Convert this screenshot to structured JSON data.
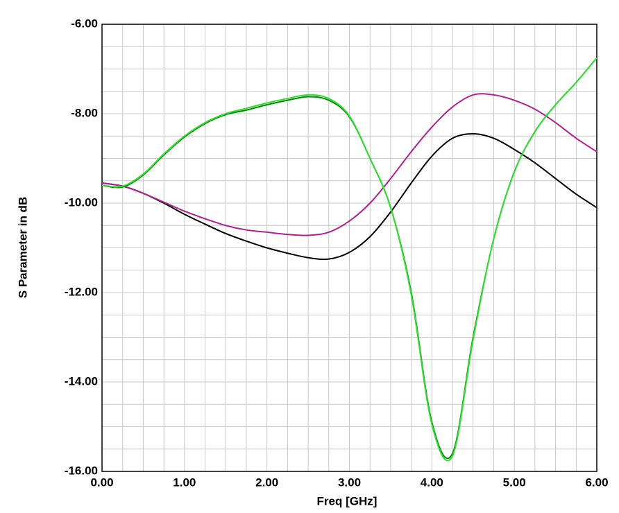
{
  "chart_data": {
    "type": "line",
    "x_label": "Freq [GHz]",
    "y_label": "S Parameter in dB",
    "x": [
      0,
      0.25,
      0.5,
      0.75,
      1,
      1.25,
      1.5,
      1.75,
      2,
      2.25,
      2.5,
      2.75,
      3,
      3.25,
      3.5,
      3.75,
      4,
      4.25,
      4.5,
      4.75,
      5,
      5.25,
      5.5,
      5.75,
      6
    ],
    "series": [
      {
        "color": "#000000",
        "values": [
          -9.55,
          -9.62,
          -9.78,
          -10.0,
          -10.25,
          -10.47,
          -10.68,
          -10.85,
          -11.0,
          -11.12,
          -11.22,
          -11.25,
          -11.1,
          -10.75,
          -10.2,
          -9.55,
          -8.95,
          -8.55,
          -8.45,
          -8.55,
          -8.8,
          -9.1,
          -9.45,
          -9.8,
          -10.1
        ]
      },
      {
        "color": "#b0208f",
        "values": [
          -9.55,
          -9.62,
          -9.78,
          -9.98,
          -10.18,
          -10.35,
          -10.5,
          -10.6,
          -10.65,
          -10.7,
          -10.72,
          -10.65,
          -10.4,
          -10.0,
          -9.45,
          -8.85,
          -8.3,
          -7.85,
          -7.58,
          -7.58,
          -7.7,
          -7.9,
          -8.2,
          -8.55,
          -8.85
        ]
      },
      {
        "color": "#008a00",
        "values": [
          -9.6,
          -9.64,
          -9.37,
          -8.92,
          -8.52,
          -8.22,
          -8.02,
          -7.92,
          -7.8,
          -7.7,
          -7.62,
          -7.7,
          -8.07,
          -9.0,
          -10.1,
          -12.0,
          -14.9,
          -15.6,
          -13.0,
          -10.8,
          -9.3,
          -8.4,
          -7.8,
          -7.3,
          -6.75
        ]
      },
      {
        "color": "#33dd33",
        "values": [
          -9.6,
          -9.62,
          -9.35,
          -8.9,
          -8.5,
          -8.2,
          -8.0,
          -7.88,
          -7.76,
          -7.66,
          -7.58,
          -7.66,
          -8.05,
          -9.0,
          -10.1,
          -12.05,
          -14.95,
          -15.65,
          -13.05,
          -10.8,
          -9.3,
          -8.4,
          -7.8,
          -7.3,
          -6.75
        ]
      }
    ],
    "xlim": [
      0,
      6
    ],
    "ylim": [
      -16,
      -6
    ],
    "xticks": [
      {
        "value": 0,
        "label": "0.00"
      },
      {
        "value": 1,
        "label": "1.00"
      },
      {
        "value": 2,
        "label": "2.00"
      },
      {
        "value": 3,
        "label": "3.00"
      },
      {
        "value": 4,
        "label": "4.00"
      },
      {
        "value": 5,
        "label": "5.00"
      },
      {
        "value": 6,
        "label": "6.00"
      }
    ],
    "yticks": [
      {
        "value": -16,
        "label": "-16.00"
      },
      {
        "value": -14,
        "label": "-14.00"
      },
      {
        "value": -12,
        "label": "-12.00"
      },
      {
        "value": -10,
        "label": "-10.00"
      },
      {
        "value": -8,
        "label": "-8.00"
      },
      {
        "value": -6,
        "label": "-6.00"
      }
    ],
    "grid": true
  }
}
